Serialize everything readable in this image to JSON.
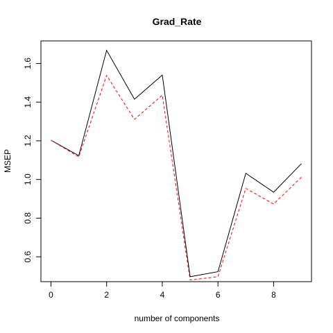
{
  "chart_data": {
    "type": "line",
    "title": "Grad_Rate",
    "xlabel": "number of components",
    "ylabel": "MSEP",
    "xlim": [
      -0.36,
      9.36
    ],
    "ylim": [
      0.4714,
      1.7165
    ],
    "x_ticks": [
      "0",
      "2",
      "4",
      "6",
      "8"
    ],
    "y_ticks": [
      "0.6",
      "0.8",
      "1.0",
      "1.2",
      "1.4",
      "1.6"
    ],
    "x": [
      0,
      1,
      2,
      3,
      4,
      5,
      6,
      7,
      8,
      9
    ],
    "series": [
      {
        "style": "solid",
        "color": "#000000",
        "values": [
          1.203,
          1.123,
          1.668,
          1.415,
          1.54,
          0.497,
          0.523,
          1.032,
          0.934,
          1.082
        ]
      },
      {
        "style": "dashed",
        "color": "#ff0000",
        "values": [
          1.203,
          1.117,
          1.538,
          1.311,
          1.436,
          0.48,
          0.497,
          0.954,
          0.873,
          1.012
        ]
      }
    ],
    "grid": false
  }
}
